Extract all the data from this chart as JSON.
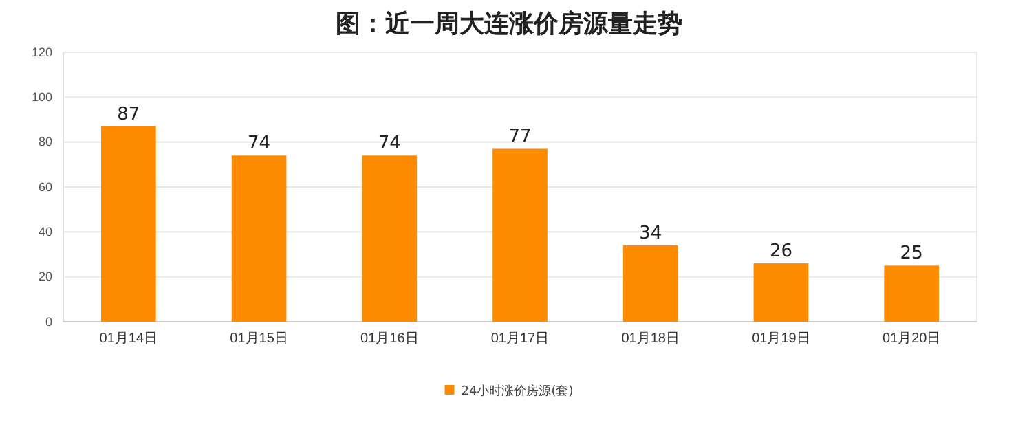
{
  "chart_data": {
    "type": "bar",
    "title": "图：近一周大连涨价房源量走势",
    "categories": [
      "01月14日",
      "01月15日",
      "01月16日",
      "01月17日",
      "01月18日",
      "01月19日",
      "01月20日"
    ],
    "series": [
      {
        "name": "24小时涨价房源(套)",
        "color": "#ff8c00",
        "values": [
          87,
          74,
          74,
          77,
          34,
          26,
          25
        ]
      }
    ],
    "ylim": [
      0,
      120
    ],
    "yticks": [
      0,
      20,
      40,
      60,
      80,
      100,
      120
    ],
    "grid": "y",
    "legend": "bottom",
    "data_labels": true
  }
}
